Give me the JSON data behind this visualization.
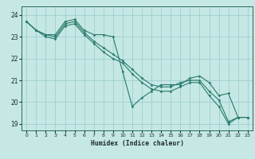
{
  "title": "",
  "xlabel": "Humidex (Indice chaleur)",
  "ylabel": "",
  "bg_color": "#c5e8e5",
  "grid_color": "#9dcece",
  "line_color": "#2a7a6a",
  "xlim": [
    -0.5,
    23.5
  ],
  "ylim": [
    18.7,
    24.4
  ],
  "xticks": [
    0,
    1,
    2,
    3,
    4,
    5,
    6,
    7,
    8,
    9,
    10,
    11,
    12,
    13,
    14,
    15,
    16,
    17,
    18,
    19,
    20,
    21,
    22,
    23
  ],
  "yticks": [
    19,
    20,
    21,
    22,
    23,
    24
  ],
  "lines": [
    {
      "x": [
        0,
        1,
        2,
        3,
        4,
        5,
        6,
        7,
        8,
        9,
        10,
        11,
        12,
        13,
        14,
        15,
        16,
        17,
        18,
        19,
        20,
        21,
        22,
        23
      ],
      "y": [
        23.7,
        23.3,
        23.1,
        23.1,
        23.7,
        23.8,
        23.3,
        23.1,
        23.1,
        23.0,
        21.4,
        19.8,
        20.2,
        20.5,
        20.8,
        20.8,
        20.8,
        21.1,
        21.2,
        20.9,
        20.3,
        20.4,
        19.3,
        19.3
      ]
    },
    {
      "x": [
        0,
        1,
        2,
        3,
        4,
        5,
        6,
        7,
        8,
        9,
        10,
        11,
        12,
        13,
        14,
        15,
        16,
        17,
        18,
        19,
        20,
        21,
        22,
        23
      ],
      "y": [
        23.7,
        23.3,
        23.1,
        23.0,
        23.6,
        23.7,
        23.2,
        22.8,
        22.5,
        22.2,
        21.9,
        21.5,
        21.1,
        20.8,
        20.7,
        20.7,
        20.9,
        21.0,
        21.0,
        20.5,
        20.1,
        19.1,
        19.3,
        19.3
      ]
    },
    {
      "x": [
        0,
        1,
        2,
        3,
        4,
        5,
        6,
        7,
        8,
        9,
        10,
        11,
        12,
        13,
        14,
        15,
        16,
        17,
        18,
        19,
        20,
        21,
        22,
        23
      ],
      "y": [
        23.7,
        23.3,
        23.0,
        22.9,
        23.5,
        23.6,
        23.1,
        22.7,
        22.3,
        22.0,
        21.8,
        21.3,
        20.9,
        20.6,
        20.5,
        20.5,
        20.7,
        20.9,
        20.9,
        20.3,
        19.8,
        19.0,
        19.3,
        19.3
      ]
    }
  ]
}
